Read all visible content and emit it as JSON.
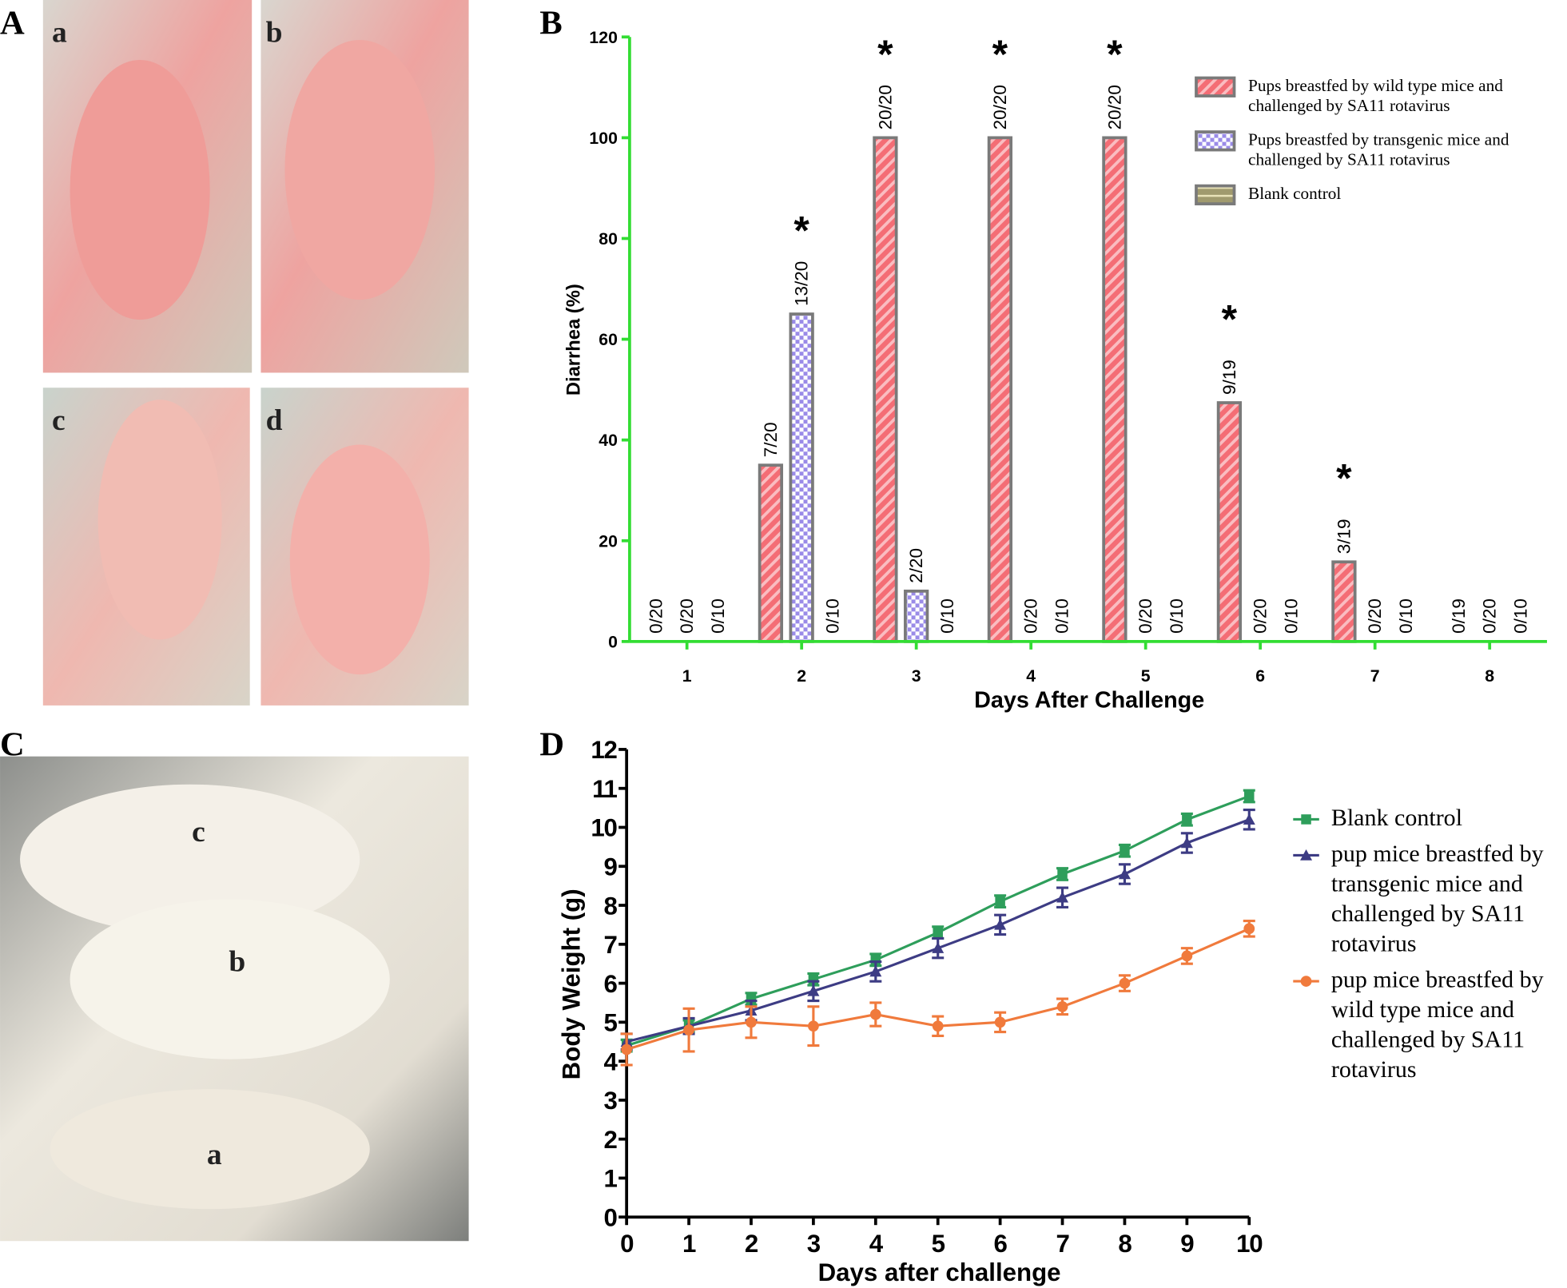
{
  "panel_labels": [
    "A",
    "B",
    "C",
    "D"
  ],
  "photos": {
    "A": [
      "a",
      "b",
      "c",
      "d"
    ],
    "C": [
      "c",
      "b",
      "a"
    ]
  },
  "chart_data": [
    {
      "type": "bar",
      "ylabel": "Diarrhea (%)",
      "xlabel": "Days After Challenge",
      "categories": [
        "1",
        "2",
        "3",
        "4",
        "5",
        "6",
        "7",
        "8"
      ],
      "ylim": [
        0,
        120
      ],
      "yticks": [
        0,
        20,
        40,
        60,
        80,
        100,
        120
      ],
      "axis_color": "#33dd33",
      "series": [
        {
          "name": "Pups breastfed by wild type mice and challenged by SA11 rotavirus",
          "color": "#f46d75",
          "pattern": "diagonal",
          "values": [
            0,
            35,
            100,
            100,
            100,
            47.4,
            15.8,
            0
          ],
          "value_labels": [
            "0/20",
            "7/20",
            "20/20",
            "20/20",
            "20/20",
            "9/19",
            "3/19",
            "0/19"
          ],
          "stars": [
            null,
            null,
            "*",
            "*",
            "*",
            "*",
            "*",
            null
          ]
        },
        {
          "name": "Pups breastfed by transgenic mice and challenged by SA11 rotavirus",
          "color": "#9a8be8",
          "pattern": "checker",
          "values": [
            0,
            65,
            10,
            0,
            0,
            0,
            0,
            0
          ],
          "value_labels": [
            "0/20",
            "13/20",
            "2/20",
            "0/20",
            "0/20",
            "0/20",
            "0/20",
            "0/20"
          ],
          "stars": [
            null,
            "*",
            null,
            null,
            null,
            null,
            null,
            null
          ]
        },
        {
          "name": "Blank control",
          "color": "#a09a6e",
          "pattern": "horizontal",
          "values": [
            0,
            0,
            0,
            0,
            0,
            0,
            0,
            0
          ],
          "value_labels": [
            "0/10",
            "0/10",
            "0/10",
            "0/10",
            "0/10",
            "0/10",
            "0/10",
            "0/10"
          ]
        }
      ]
    },
    {
      "type": "line",
      "ylabel": "Body Weight (g)",
      "xlabel": "Days after challenge",
      "x": [
        0,
        1,
        2,
        3,
        4,
        5,
        6,
        7,
        8,
        9,
        10
      ],
      "xlim": [
        0,
        10
      ],
      "xticks": [
        0,
        1,
        2,
        3,
        4,
        5,
        6,
        7,
        8,
        9,
        10
      ],
      "ylim": [
        0,
        12
      ],
      "yticks": [
        0,
        1,
        2,
        3,
        4,
        5,
        6,
        7,
        8,
        9,
        10,
        11,
        12
      ],
      "series": [
        {
          "name": "Blank control",
          "color": "#2e9e5b",
          "marker": "square",
          "values": [
            4.4,
            4.9,
            5.6,
            6.1,
            6.6,
            7.3,
            8.1,
            8.8,
            9.4,
            10.2,
            10.8
          ],
          "errors": [
            0.15,
            0.15,
            0.15,
            0.15,
            0.15,
            0.15,
            0.15,
            0.15,
            0.15,
            0.15,
            0.15
          ]
        },
        {
          "name": "pup mice breastfed by transgenic mice and challenged by SA11 rotavirus",
          "color": "#3d3c84",
          "marker": "triangle",
          "values": [
            4.5,
            4.9,
            5.3,
            5.8,
            6.3,
            6.9,
            7.5,
            8.2,
            8.8,
            9.6,
            10.2
          ],
          "errors": [
            0.2,
            0.2,
            0.25,
            0.25,
            0.25,
            0.25,
            0.25,
            0.25,
            0.25,
            0.25,
            0.25
          ]
        },
        {
          "name": "pup mice breastfed by wild type mice and challenged by SA11 rotavirus",
          "color": "#f07a3c",
          "marker": "circle",
          "values": [
            4.3,
            4.8,
            5.0,
            4.9,
            5.2,
            4.9,
            5.0,
            5.4,
            6.0,
            6.7,
            7.4
          ],
          "errors": [
            0.4,
            0.55,
            0.4,
            0.5,
            0.3,
            0.25,
            0.25,
            0.2,
            0.2,
            0.2,
            0.2
          ]
        }
      ]
    }
  ]
}
